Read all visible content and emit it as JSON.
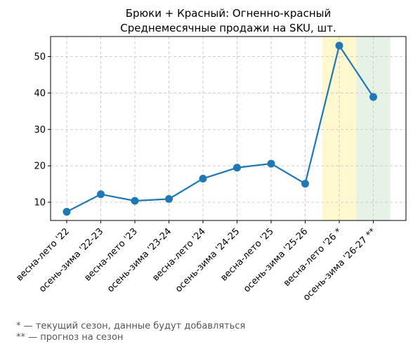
{
  "chart_data": {
    "type": "line",
    "title_line1": "Брюки + Красный: Огненно-красный",
    "title_line2": "Среднемесячные продажи на SKU, шт.",
    "xlabel": "",
    "ylabel": "",
    "categories": [
      "весна-лето '22",
      "осень-зима '22-23",
      "весна-лето '23",
      "осень-зима '23-24",
      "весна-лето '24",
      "осень-зима '24-25",
      "весна-лето '25",
      "осень-зима '25-26",
      "весна-лето '26 *",
      "осень-зима '26-27 **"
    ],
    "series": [
      {
        "values": [
          7.4,
          12.2,
          10.4,
          10.9,
          16.5,
          19.5,
          20.6,
          15.1,
          53.0,
          38.9
        ],
        "color": "#1f77b4"
      }
    ],
    "ylim": [
      5,
      55.5
    ],
    "yticks": [
      10,
      20,
      30,
      40,
      50
    ],
    "grid": true,
    "highlights": [
      {
        "category": "весна-лето '26 *",
        "color": "#fff2a8",
        "meaning": "current season"
      },
      {
        "category": "осень-зима '26-27 **",
        "color": "#cfe8cf",
        "meaning": "forecast"
      }
    ]
  },
  "footnotes": {
    "current": "* — текущий сезон, данные будут добавляться",
    "forecast": "** — прогноз на сезон"
  }
}
